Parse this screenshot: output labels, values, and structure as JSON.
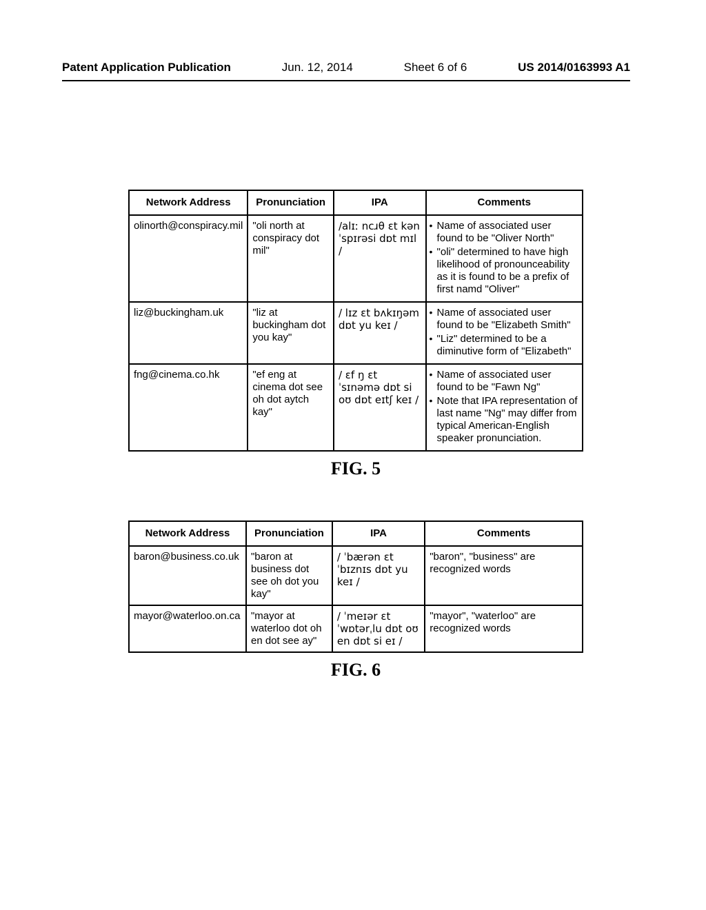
{
  "header": {
    "publication_label": "Patent Application Publication",
    "date": "Jun. 12, 2014",
    "sheet": "Sheet 6 of 6",
    "pub_number": "US 2014/0163993 A1"
  },
  "fig5": {
    "caption": "FIG. 5",
    "columns": [
      "Network Address",
      "Pronunciation",
      "IPA",
      "Comments"
    ],
    "rows": [
      {
        "address": "olinorth@conspiracy.mil",
        "pron": "\"oli north at conspiracy dot mil\"",
        "ipa": "/alɪː ncɹθ ɛt kənˈspɪrəsi dɒt mɪl /",
        "comments": [
          "Name of associated user found to be \"Oliver North\"",
          "\"oli\" determined to have high likelihood of pronounceability as it is found to be a prefix of first namd \"Oliver\""
        ],
        "comments_mode": "list"
      },
      {
        "address": "liz@buckingham.uk",
        "pron": "\"liz at buckingham dot you kay\"",
        "ipa": "/ lɪz ɛt bʌkɪŋəm dɒt yu keɪ /",
        "comments": [
          "Name of associated user found to be \"Elizabeth Smith\"",
          "\"Liz\" determined to be a diminutive form of \"Elizabeth\""
        ],
        "comments_mode": "list"
      },
      {
        "address": "fng@cinema.co.hk",
        "pron": "\"ef eng at cinema dot see oh dot aytch kay\"",
        "ipa": "/ ɛf ŋ ɛt ˈsɪnəmə dɒt si oʊ dɒt eɪtʃ keɪ /",
        "comments": [
          "Name of associated user found to be \"Fawn Ng\"",
          "Note that IPA representation of last name \"Ng\" may differ from typical American-English speaker pronunciation."
        ],
        "comments_mode": "list"
      }
    ]
  },
  "fig6": {
    "caption": "FIG. 6",
    "columns": [
      "Network Address",
      "Pronunciation",
      "IPA",
      "Comments"
    ],
    "rows": [
      {
        "address": "baron@business.co.uk",
        "pron": "\"baron at business dot see oh dot you kay\"",
        "ipa": "/ ˈbærən ɛt ˈbɪznɪs dɒt yu keɪ /",
        "comments": "\"baron\", \"business\" are recognized words",
        "comments_mode": "plain"
      },
      {
        "address": "mayor@waterloo.on.ca",
        "pron": "\"mayor at waterloo dot oh en dot see ay\"",
        "ipa": "/ ˈmeɪər ɛt ˈwɒtərˌlu dɒt oʊ en dɒt si eɪ /",
        "comments": "\"mayor\", \"waterloo\" are recognized words",
        "comments_mode": "plain"
      }
    ]
  }
}
